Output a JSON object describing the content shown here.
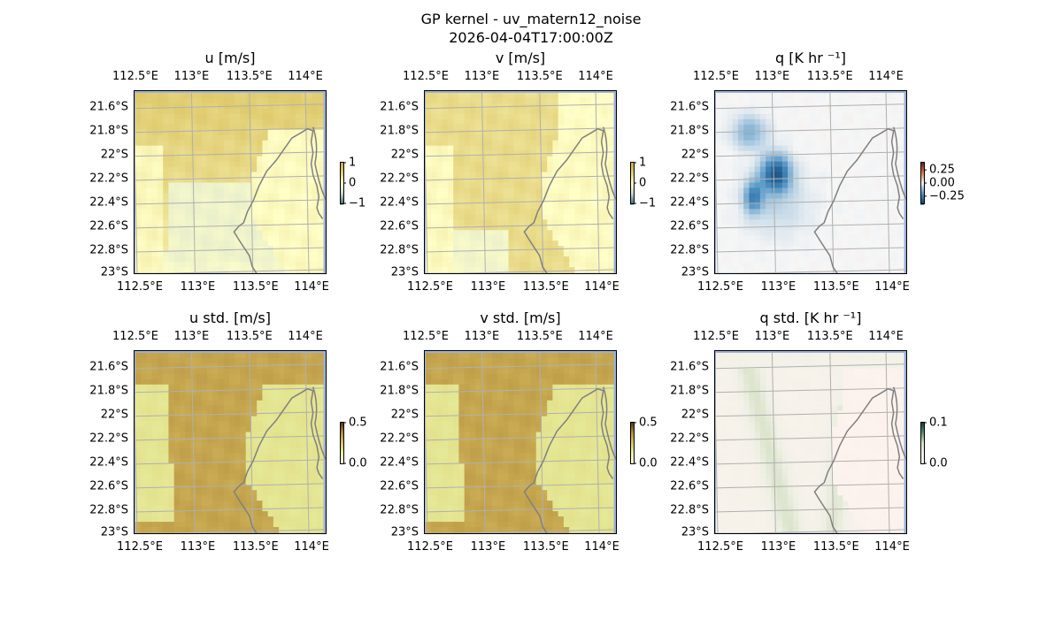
{
  "figure": {
    "title_line1": "GP kernel - uv_matern12_noise",
    "title_line2": "2026-04-04T17:00:00Z"
  },
  "chart_data": [
    {
      "type": "heatmap",
      "title": "u [m/s]",
      "x_ticks": [
        "112.5°E",
        "113°E",
        "113.5°E",
        "114°E"
      ],
      "y_ticks": [
        "21.6°S",
        "21.8°S",
        "22°S",
        "22.2°S",
        "22.4°S",
        "22.6°S",
        "22.8°S",
        "23°S"
      ],
      "colorbar": {
        "ticks": [
          "1",
          "0",
          "−1"
        ],
        "range": [
          -1,
          1
        ]
      },
      "colormap": [
        "#3b6a73",
        "#c8d8cf",
        "#ffffc8",
        "#e0cc70",
        "#c9a640"
      ]
    },
    {
      "type": "heatmap",
      "title": "v [m/s]",
      "x_ticks": [
        "112.5°E",
        "113°E",
        "113.5°E",
        "114°E"
      ],
      "y_ticks": [
        "21.6°S",
        "21.8°S",
        "22°S",
        "22.2°S",
        "22.4°S",
        "22.6°S",
        "22.8°S",
        "23°S"
      ],
      "colorbar": {
        "ticks": [
          "1",
          "0",
          "−1"
        ],
        "range": [
          -1,
          1
        ]
      },
      "colormap": [
        "#3b6a73",
        "#c8d8cf",
        "#ffffc8",
        "#e0cc70",
        "#c9a640"
      ]
    },
    {
      "type": "heatmap",
      "title": "q [K hr ⁻¹]",
      "x_ticks": [
        "112.5°E",
        "113°E",
        "113.5°E",
        "114°E"
      ],
      "y_ticks": [
        "21.6°S",
        "21.8°S",
        "22°S",
        "22.2°S",
        "22.4°S",
        "22.6°S",
        "22.8°S",
        "23°S"
      ],
      "colorbar": {
        "ticks": [
          "0.25",
          "0.00",
          "−0.25"
        ],
        "range": [
          -0.4,
          0.4
        ]
      },
      "colormap": [
        "#0b3f73",
        "#4f93c4",
        "#f6f6f6",
        "#d27350",
        "#6b0f1a"
      ]
    },
    {
      "type": "heatmap",
      "title": "u std. [m/s]",
      "x_ticks": [
        "112.5°E",
        "113°E",
        "113.5°E",
        "114°E"
      ],
      "y_ticks": [
        "21.6°S",
        "21.8°S",
        "22°S",
        "22.2°S",
        "22.4°S",
        "22.6°S",
        "22.8°S",
        "23°S"
      ],
      "colorbar": {
        "ticks": [
          "0.5",
          "0.0"
        ],
        "range": [
          0,
          0.6
        ]
      },
      "colormap": [
        "#fffce0",
        "#e8f5a8",
        "#dcc566",
        "#b08a3a",
        "#4a2f10"
      ]
    },
    {
      "type": "heatmap",
      "title": "v std. [m/s]",
      "x_ticks": [
        "112.5°E",
        "113°E",
        "113.5°E",
        "114°E"
      ],
      "y_ticks": [
        "21.6°S",
        "21.8°S",
        "22°S",
        "22.2°S",
        "22.4°S",
        "22.6°S",
        "22.8°S",
        "23°S"
      ],
      "colorbar": {
        "ticks": [
          "0.5",
          "0.0"
        ],
        "range": [
          0,
          0.6
        ]
      },
      "colormap": [
        "#fffce0",
        "#e8f5a8",
        "#dcc566",
        "#b08a3a",
        "#4a2f10"
      ]
    },
    {
      "type": "heatmap",
      "title": "q std. [K hr ⁻¹]",
      "x_ticks": [
        "112.5°E",
        "113°E",
        "113.5°E",
        "114°E"
      ],
      "y_ticks": [
        "21.6°S",
        "21.8°S",
        "22°S",
        "22.2°S",
        "22.4°S",
        "22.6°S",
        "22.8°S",
        "23°S"
      ],
      "colorbar": {
        "ticks": [
          "0.1",
          "0.0"
        ],
        "range": [
          0,
          0.12
        ]
      },
      "colormap": [
        "#fff3ef",
        "#eef0e4",
        "#d8e2c8",
        "#5a8a70",
        "#0f3a2a"
      ]
    }
  ],
  "colors": {
    "ocean": "#9bb0d8",
    "gridline": "#b0b0b0",
    "coastline": "#808080"
  }
}
